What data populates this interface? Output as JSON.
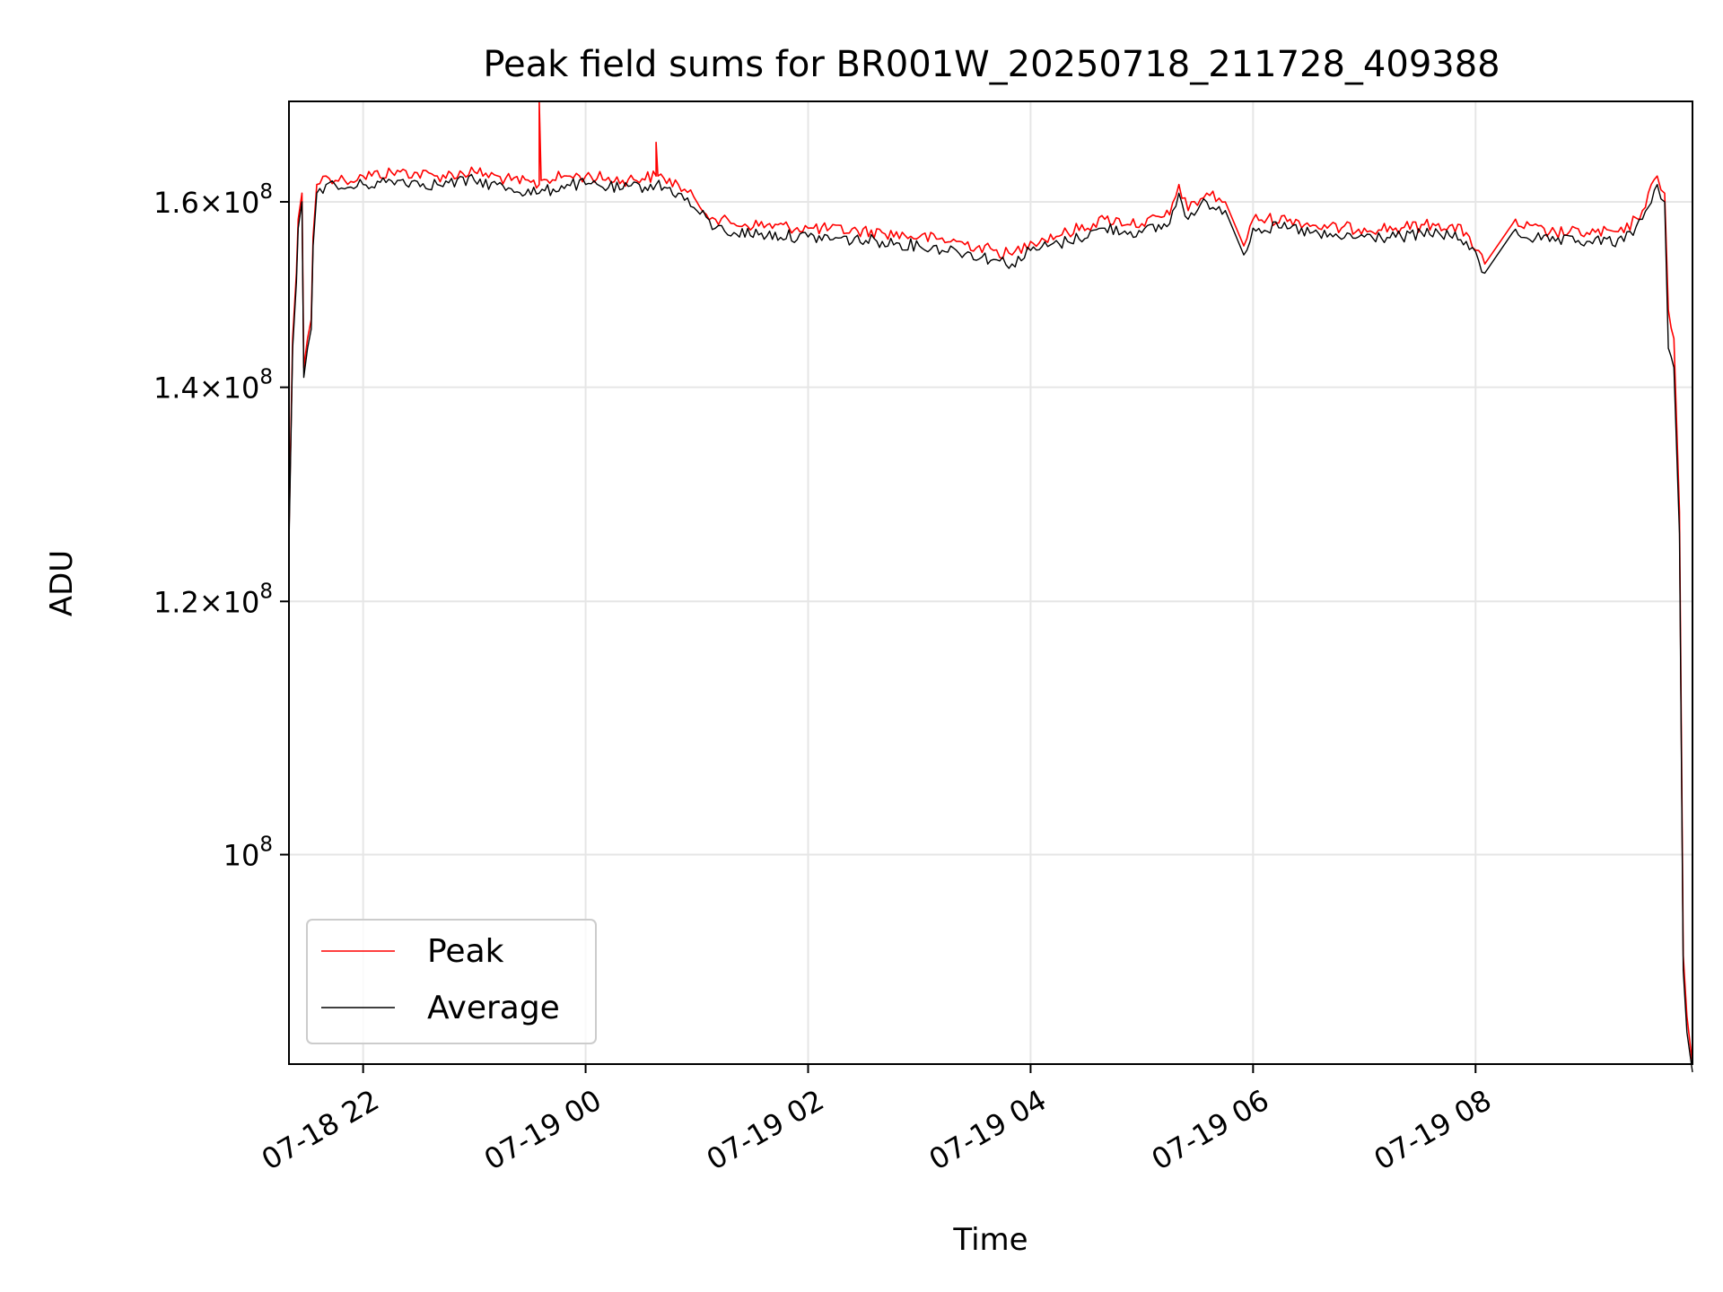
{
  "chart_data": {
    "type": "line",
    "title": "Peak field sums for BR001W_20250718_211728_409388",
    "xlabel": "Time",
    "ylabel": "ADU",
    "y_scale": "log",
    "x_range": [
      "2025-07-18 21:20",
      "2025-07-19 09:57"
    ],
    "ylim": [
      86000000,
      172000000
    ],
    "grid": true,
    "legend_position": "lower-left",
    "x_ticks": [
      {
        "t": "2025-07-18 22:00",
        "label": "07-18 22"
      },
      {
        "t": "2025-07-19 00:00",
        "label": "07-19 00"
      },
      {
        "t": "2025-07-19 02:00",
        "label": "07-19 02"
      },
      {
        "t": "2025-07-19 04:00",
        "label": "07-19 04"
      },
      {
        "t": "2025-07-19 06:00",
        "label": "07-19 06"
      },
      {
        "t": "2025-07-19 08:00",
        "label": "07-19 08"
      }
    ],
    "y_ticks": [
      {
        "value": 100000000,
        "mantissa": "",
        "exponent": "8"
      },
      {
        "value": 120000000,
        "mantissa": "1.2",
        "exponent": "8"
      },
      {
        "value": 140000000,
        "mantissa": "1.4",
        "exponent": "8"
      },
      {
        "value": 160000000,
        "mantissa": "1.6",
        "exponent": "8"
      }
    ],
    "series": [
      {
        "name": "Peak",
        "color": "#ff0000",
        "points": [
          [
            "2025-07-18 21:20",
            126000000
          ],
          [
            "2025-07-18 21:22",
            145000000
          ],
          [
            "2025-07-18 21:24",
            152000000
          ],
          [
            "2025-07-18 21:25",
            158000000
          ],
          [
            "2025-07-18 21:27",
            161000000
          ],
          [
            "2025-07-18 21:28",
            142000000
          ],
          [
            "2025-07-18 21:30",
            145000000
          ],
          [
            "2025-07-18 21:32",
            147000000
          ],
          [
            "2025-07-18 21:33",
            156000000
          ],
          [
            "2025-07-18 21:35",
            162000000
          ],
          [
            "2025-07-18 21:40",
            163000000
          ],
          [
            "2025-07-18 21:50",
            162500000
          ],
          [
            "2025-07-18 22:00",
            163000000
          ],
          [
            "2025-07-18 22:20",
            163500000
          ],
          [
            "2025-07-18 22:40",
            163000000
          ],
          [
            "2025-07-18 23:00",
            163500000
          ],
          [
            "2025-07-18 23:20",
            162500000
          ],
          [
            "2025-07-18 23:35",
            162000000
          ],
          [
            "2025-07-18 23:35",
            172000000
          ],
          [
            "2025-07-18 23:36",
            162500000
          ],
          [
            "2025-07-18 23:50",
            163000000
          ],
          [
            "2025-07-19 00:00",
            163000000
          ],
          [
            "2025-07-19 00:20",
            162500000
          ],
          [
            "2025-07-19 00:38",
            163000000
          ],
          [
            "2025-07-19 00:38",
            167000000
          ],
          [
            "2025-07-19 00:39",
            163000000
          ],
          [
            "2025-07-19 00:50",
            162000000
          ],
          [
            "2025-07-19 01:00",
            160000000
          ],
          [
            "2025-07-19 01:10",
            158000000
          ],
          [
            "2025-07-19 01:20",
            157500000
          ],
          [
            "2025-07-19 02:00",
            157000000
          ],
          [
            "2025-07-19 02:40",
            156500000
          ],
          [
            "2025-07-19 03:00",
            156000000
          ],
          [
            "2025-07-19 03:20",
            155500000
          ],
          [
            "2025-07-19 03:40",
            154500000
          ],
          [
            "2025-07-19 03:50",
            154000000
          ],
          [
            "2025-07-19 04:00",
            155500000
          ],
          [
            "2025-07-19 04:20",
            156500000
          ],
          [
            "2025-07-19 04:40",
            158000000
          ],
          [
            "2025-07-19 05:00",
            157500000
          ],
          [
            "2025-07-19 05:15",
            158500000
          ],
          [
            "2025-07-19 05:20",
            162000000
          ],
          [
            "2025-07-19 05:25",
            159000000
          ],
          [
            "2025-07-19 05:35",
            161000000
          ],
          [
            "2025-07-19 05:45",
            160000000
          ],
          [
            "2025-07-19 05:55",
            155000000
          ],
          [
            "2025-07-19 06:00",
            158000000
          ],
          [
            "2025-07-19 06:20",
            158000000
          ],
          [
            "2025-07-19 06:40",
            157000000
          ],
          [
            "2025-07-19 07:00",
            157000000
          ],
          [
            "2025-07-19 07:20",
            157000000
          ],
          [
            "2025-07-19 07:40",
            157500000
          ],
          [
            "2025-07-19 07:55",
            156500000
          ],
          [
            "2025-07-19 08:05",
            153000000
          ],
          [
            "2025-07-19 08:20",
            157500000
          ],
          [
            "2025-07-19 08:40",
            156500000
          ],
          [
            "2025-07-19 09:00",
            156500000
          ],
          [
            "2025-07-19 09:20",
            156500000
          ],
          [
            "2025-07-19 09:30",
            159000000
          ],
          [
            "2025-07-19 09:38",
            163000000
          ],
          [
            "2025-07-19 09:42",
            161000000
          ],
          [
            "2025-07-19 09:44",
            148000000
          ],
          [
            "2025-07-19 09:47",
            145000000
          ],
          [
            "2025-07-19 09:50",
            128000000
          ],
          [
            "2025-07-19 09:52",
            93000000
          ],
          [
            "2025-07-19 09:54",
            89000000
          ],
          [
            "2025-07-19 09:57",
            86000000
          ]
        ]
      },
      {
        "name": "Average",
        "color": "#000000",
        "points": [
          [
            "2025-07-18 21:20",
            125000000
          ],
          [
            "2025-07-18 21:22",
            144000000
          ],
          [
            "2025-07-18 21:24",
            151000000
          ],
          [
            "2025-07-18 21:25",
            157000000
          ],
          [
            "2025-07-18 21:27",
            160000000
          ],
          [
            "2025-07-18 21:28",
            141000000
          ],
          [
            "2025-07-18 21:30",
            144000000
          ],
          [
            "2025-07-18 21:32",
            146000000
          ],
          [
            "2025-07-18 21:33",
            155000000
          ],
          [
            "2025-07-18 21:35",
            161000000
          ],
          [
            "2025-07-18 21:40",
            162000000
          ],
          [
            "2025-07-18 21:50",
            161500000
          ],
          [
            "2025-07-18 22:00",
            162000000
          ],
          [
            "2025-07-18 22:20",
            162500000
          ],
          [
            "2025-07-18 22:40",
            162000000
          ],
          [
            "2025-07-18 23:00",
            162500000
          ],
          [
            "2025-07-18 23:20",
            161500000
          ],
          [
            "2025-07-18 23:35",
            161000000
          ],
          [
            "2025-07-18 23:50",
            162000000
          ],
          [
            "2025-07-19 00:00",
            162000000
          ],
          [
            "2025-07-19 00:20",
            161500000
          ],
          [
            "2025-07-19 00:38",
            162000000
          ],
          [
            "2025-07-19 00:50",
            161000000
          ],
          [
            "2025-07-19 01:00",
            159000000
          ],
          [
            "2025-07-19 01:10",
            157000000
          ],
          [
            "2025-07-19 01:20",
            156500000
          ],
          [
            "2025-07-19 02:00",
            156000000
          ],
          [
            "2025-07-19 02:40",
            155500000
          ],
          [
            "2025-07-19 03:00",
            155000000
          ],
          [
            "2025-07-19 03:20",
            154500000
          ],
          [
            "2025-07-19 03:40",
            153500000
          ],
          [
            "2025-07-19 03:50",
            153000000
          ],
          [
            "2025-07-19 04:00",
            154500000
          ],
          [
            "2025-07-19 04:20",
            155500000
          ],
          [
            "2025-07-19 04:40",
            157000000
          ],
          [
            "2025-07-19 05:00",
            156500000
          ],
          [
            "2025-07-19 05:15",
            157500000
          ],
          [
            "2025-07-19 05:20",
            161000000
          ],
          [
            "2025-07-19 05:25",
            158000000
          ],
          [
            "2025-07-19 05:35",
            160000000
          ],
          [
            "2025-07-19 05:45",
            159000000
          ],
          [
            "2025-07-19 05:55",
            154000000
          ],
          [
            "2025-07-19 06:00",
            157000000
          ],
          [
            "2025-07-19 06:20",
            157000000
          ],
          [
            "2025-07-19 06:40",
            156000000
          ],
          [
            "2025-07-19 07:00",
            156000000
          ],
          [
            "2025-07-19 07:20",
            156000000
          ],
          [
            "2025-07-19 07:40",
            156500000
          ],
          [
            "2025-07-19 07:55",
            155500000
          ],
          [
            "2025-07-19 08:05",
            152000000
          ],
          [
            "2025-07-19 08:20",
            156500000
          ],
          [
            "2025-07-19 08:40",
            155500000
          ],
          [
            "2025-07-19 09:00",
            155500000
          ],
          [
            "2025-07-19 09:20",
            155500000
          ],
          [
            "2025-07-19 09:30",
            158000000
          ],
          [
            "2025-07-19 09:38",
            162000000
          ],
          [
            "2025-07-19 09:42",
            160000000
          ],
          [
            "2025-07-19 09:44",
            144000000
          ],
          [
            "2025-07-19 09:47",
            142000000
          ],
          [
            "2025-07-19 09:50",
            126000000
          ],
          [
            "2025-07-19 09:52",
            92000000
          ],
          [
            "2025-07-19 09:54",
            88000000
          ],
          [
            "2025-07-19 09:57",
            85500000
          ]
        ]
      }
    ]
  }
}
